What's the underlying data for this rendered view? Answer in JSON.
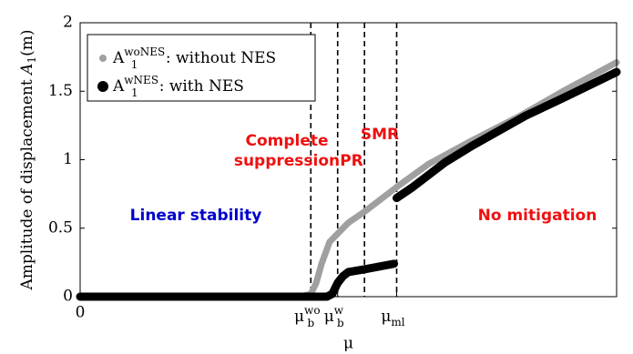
{
  "chart_data": {
    "type": "line",
    "ylabel": {
      "text": "Amplitude of displacement ",
      "base": "A",
      "sub": "1",
      "rest": "(m)"
    },
    "xlabel": "μ",
    "xlim": [
      0,
      1
    ],
    "ylim": [
      0,
      2
    ],
    "yticks": [
      0,
      0.5,
      1,
      1.5,
      2
    ],
    "xticks": [
      0,
      {
        "value": 0.43,
        "label": {
          "base": "μ",
          "sub": "b",
          "sup": "wo"
        }
      },
      {
        "value": 0.48,
        "label": {
          "base": "μ",
          "sub": "b",
          "sup": "w"
        }
      },
      {
        "value": 0.59,
        "label": {
          "base": "μ",
          "sub": "ml"
        }
      }
    ],
    "vlines": [
      0.43,
      0.48,
      0.53,
      0.59
    ],
    "legend": "upper left",
    "series": [
      {
        "name": {
          "base": "A",
          "sub": "1",
          "sup": "woNES",
          "text": ": without NES"
        },
        "color": "#a0a0a0",
        "x": [
          0,
          0.41,
          0.43,
          0.44,
          0.45,
          0.465,
          0.48,
          0.5,
          0.53,
          0.59,
          0.65,
          0.73,
          0.82,
          0.9,
          1
        ],
        "values": [
          0,
          0,
          0.02,
          0.1,
          0.24,
          0.4,
          0.46,
          0.54,
          0.62,
          0.8,
          0.97,
          1.14,
          1.32,
          1.5,
          1.71
        ]
      },
      {
        "name": {
          "base": "A",
          "sub": "1",
          "sup": "wNES",
          "text": ": with NES"
        },
        "color": "#000000",
        "x": [
          0,
          0.46,
          0.47,
          0.48,
          0.49,
          0.5,
          0.53,
          0.585,
          0.587,
          0.59,
          0.62,
          0.68,
          0.73,
          0.83,
          0.9,
          1
        ],
        "values": [
          0,
          0,
          0.02,
          0.1,
          0.15,
          0.18,
          0.2,
          0.24,
          null,
          0.72,
          0.8,
          0.98,
          1.1,
          1.32,
          1.45,
          1.64
        ]
      }
    ],
    "annotations": [
      {
        "lines": [
          "Linear stability"
        ],
        "color": "#0000cc"
      },
      {
        "lines": [
          "Complete",
          "suppression"
        ],
        "color": "#ee1111"
      },
      {
        "lines": [
          "PR"
        ],
        "color": "#ee1111"
      },
      {
        "lines": [
          "SMR"
        ],
        "color": "#ee1111"
      },
      {
        "lines": [
          "No mitigation"
        ],
        "color": "#ee1111"
      }
    ]
  }
}
